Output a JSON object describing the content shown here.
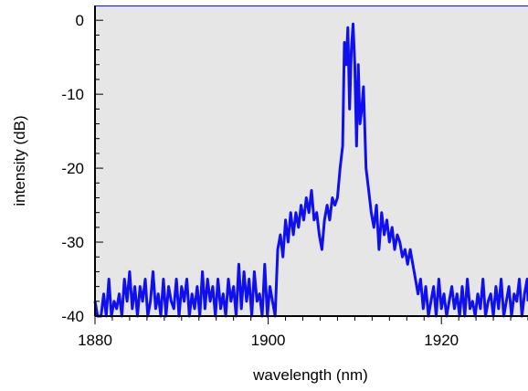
{
  "chart_data": {
    "type": "line",
    "title": "",
    "xlabel": "wavelength (nm)",
    "ylabel": "intensity (dB)",
    "xlim": [
      1880,
      1930
    ],
    "ylim": [
      -40,
      2
    ],
    "x_ticks": [
      1880,
      1900,
      1920
    ],
    "x_tick_labels": [
      "1880",
      "1900",
      "1920"
    ],
    "y_ticks": [
      0,
      -10,
      -20,
      -30,
      -40
    ],
    "y_tick_labels": [
      "0",
      "-10",
      "-20",
      "-30",
      "-40"
    ],
    "grid": false,
    "legend": "none",
    "colors": {
      "series": "#1010ee",
      "plot_background": "#e6e6e6",
      "axes": "#000000"
    },
    "series": [
      {
        "x": [
          1880.0,
          1880.3,
          1880.5,
          1880.7,
          1881.0,
          1881.3,
          1881.6,
          1881.9,
          1882.2,
          1882.5,
          1882.8,
          1883.1,
          1883.4,
          1883.7,
          1884.0,
          1884.3,
          1884.6,
          1884.9,
          1885.2,
          1885.5,
          1885.8,
          1886.1,
          1886.4,
          1886.7,
          1887.0,
          1887.3,
          1887.6,
          1887.9,
          1888.2,
          1888.5,
          1888.8,
          1889.1,
          1889.4,
          1889.7,
          1890.0,
          1890.3,
          1890.6,
          1890.9,
          1891.2,
          1891.5,
          1891.8,
          1892.1,
          1892.4,
          1892.7,
          1893.0,
          1893.3,
          1893.6,
          1893.9,
          1894.2,
          1894.5,
          1894.8,
          1895.1,
          1895.4,
          1895.7,
          1896.0,
          1896.3,
          1896.6,
          1896.9,
          1897.2,
          1897.5,
          1897.8,
          1898.1,
          1898.4,
          1898.7,
          1899.0,
          1899.3,
          1899.6,
          1899.9,
          1900.2,
          1900.5,
          1900.8,
          1901.1,
          1901.4,
          1901.7,
          1902.0,
          1902.3,
          1902.6,
          1902.9,
          1903.2,
          1903.5,
          1903.8,
          1904.1,
          1904.4,
          1904.7,
          1905.0,
          1905.3,
          1905.6,
          1905.9,
          1906.2,
          1906.5,
          1906.8,
          1907.1,
          1907.4,
          1907.7,
          1908.0,
          1908.3,
          1908.6,
          1908.8,
          1909.0,
          1909.2,
          1909.4,
          1909.6,
          1909.8,
          1910.0,
          1910.2,
          1910.4,
          1910.6,
          1910.8,
          1911.0,
          1911.3,
          1911.6,
          1911.9,
          1912.2,
          1912.5,
          1912.8,
          1913.1,
          1913.4,
          1913.7,
          1914.0,
          1914.3,
          1914.6,
          1914.9,
          1915.2,
          1915.5,
          1915.8,
          1916.1,
          1916.4,
          1916.7,
          1917.0,
          1917.3,
          1917.6,
          1917.9,
          1918.2,
          1918.5,
          1918.8,
          1919.1,
          1919.4,
          1919.7,
          1920.0,
          1920.3,
          1920.6,
          1920.9,
          1921.2,
          1921.5,
          1921.8,
          1922.1,
          1922.4,
          1922.7,
          1923.0,
          1923.3,
          1923.6,
          1923.9,
          1924.2,
          1924.5,
          1924.8,
          1925.1,
          1925.4,
          1925.7,
          1926.0,
          1926.3,
          1926.6,
          1926.9,
          1927.2,
          1927.5,
          1927.8,
          1928.1,
          1928.4,
          1928.7,
          1929.0,
          1929.3,
          1929.6,
          1929.9,
          1930.0
        ],
        "y": [
          -38,
          -40,
          -40,
          -40,
          -37,
          -40,
          -35,
          -40,
          -38,
          -39,
          -37,
          -40,
          -35,
          -38,
          -34,
          -39,
          -36,
          -40,
          -36,
          -38,
          -35,
          -40,
          -38,
          -34,
          -39,
          -37,
          -40,
          -35,
          -40,
          -36,
          -38,
          -39,
          -35,
          -40,
          -36,
          -38,
          -35,
          -40,
          -37,
          -39,
          -36,
          -40,
          -34,
          -39,
          -35,
          -38,
          -36,
          -40,
          -35,
          -39,
          -37,
          -40,
          -35,
          -38,
          -36,
          -40,
          -33,
          -39,
          -34,
          -38,
          -35,
          -40,
          -34,
          -38,
          -37,
          -40,
          -33,
          -40,
          -36,
          -38,
          -40,
          -31,
          -29,
          -32,
          -27,
          -30,
          -26,
          -29,
          -26,
          -28,
          -25,
          -27,
          -24,
          -26,
          -23,
          -27,
          -26,
          -29,
          -31,
          -27,
          -25,
          -27,
          -24,
          -25,
          -24,
          -20,
          -17,
          -3,
          -6,
          -1,
          -12,
          -4,
          -0.5,
          -6,
          -17,
          -6,
          -14,
          -12,
          -9,
          -20,
          -23,
          -26,
          -28,
          -25,
          -31,
          -26,
          -29,
          -27,
          -30,
          -28,
          -31,
          -29,
          -30,
          -32,
          -31,
          -33,
          -31,
          -33,
          -35,
          -37,
          -35,
          -39,
          -36,
          -40,
          -38,
          -36,
          -40,
          -35,
          -39,
          -37,
          -40,
          -38,
          -36,
          -39,
          -37,
          -40,
          -36,
          -40,
          -35,
          -39,
          -38,
          -40,
          -37,
          -39,
          -35,
          -40,
          -38,
          -37,
          -40,
          -36,
          -39,
          -35,
          -40,
          -38,
          -36,
          -40,
          -37,
          -38,
          -35,
          -40,
          -37,
          -35,
          -38
        ]
      }
    ]
  }
}
